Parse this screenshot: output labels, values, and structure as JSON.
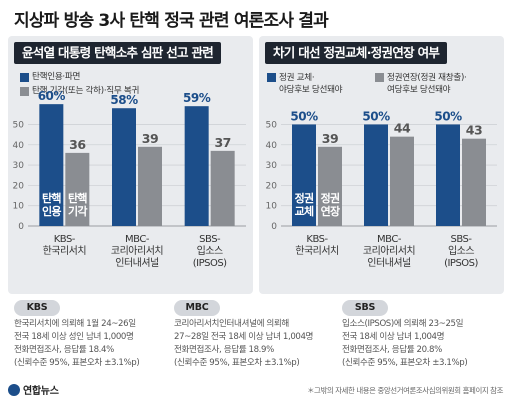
{
  "title": "지상파 방송 3사 탄핵 정국 관련 여론조사 결과",
  "colors": {
    "primary": "#1c4e8a",
    "secondary": "#8a8d92",
    "panel_bg": "#e9ebee",
    "title_bar": "#1e2530"
  },
  "chart_data": [
    {
      "type": "bar",
      "title": "윤석열 대통령 탄핵소추 심판 선고 관련",
      "categories": [
        "KBS-\n한국리서치",
        "MBC-\n코리아리서치\n인터내셔널",
        "SBS-\n입소스\n(IPSOS)"
      ],
      "series": [
        {
          "name": "탄핵인용·파면",
          "values": [
            60,
            58,
            59
          ],
          "labels": [
            "60%",
            "58%",
            "59%"
          ],
          "color": "#1c4e8a"
        },
        {
          "name": "탄핵 기각(또는 각하)·직무 복귀",
          "values": [
            36,
            39,
            37
          ],
          "labels": [
            "36",
            "39",
            "37"
          ],
          "color": "#8a8d92"
        }
      ],
      "yticks": [
        0,
        10,
        20,
        30,
        40,
        50
      ],
      "ylim": [
        0,
        65
      ],
      "grid": true,
      "legend": "top",
      "bar_inner_labels": [
        "탄핵\n인용",
        "탄핵\n기각"
      ]
    },
    {
      "type": "bar",
      "title": "차기 대선 정권교체·정권연장 여부",
      "categories": [
        "KBS-\n한국리서치",
        "MBC-\n코리아리서치\n인터내셔널",
        "SBS-\n입소스\n(IPSOS)"
      ],
      "series": [
        {
          "name": "정권 교체·\n야당후보 당선돼야",
          "values": [
            50,
            50,
            50
          ],
          "labels": [
            "50%",
            "50%",
            "50%"
          ],
          "color": "#1c4e8a"
        },
        {
          "name": "정권연장(정권 재창출)·\n여당후보 당선돼야",
          "values": [
            39,
            44,
            43
          ],
          "labels": [
            "39",
            "44",
            "43"
          ],
          "color": "#8a8d92"
        }
      ],
      "yticks": [
        0,
        10,
        20,
        30,
        40,
        50
      ],
      "ylim": [
        0,
        65
      ],
      "grid": true,
      "legend": "top",
      "bar_inner_labels": [
        "정권\n교체",
        "정권\n연장"
      ]
    }
  ],
  "surveys": [
    {
      "badge": "KBS",
      "lines": [
        "한국리서치에 의뢰해 1월 24~26일",
        "전국 18세 이상 성인 남녀 1,000명",
        "전화면접조사, 응답률 18.4%",
        "(신뢰수준 95%, 표본오차 ±3.1%p)"
      ]
    },
    {
      "badge": "MBC",
      "lines": [
        "코리아리서치인터내셔널에 의뢰해",
        "27~28일 전국 18세 이상 남녀 1,004명",
        "전화면접조사, 응답률 18.9%",
        "(신뢰수준 95%, 표본오차 ±3.1%p)"
      ]
    },
    {
      "badge": "SBS",
      "lines": [
        "입소스(IPSOS)에 의뢰해 23~25일",
        "전국 18세 이상 남녀 1,004명",
        "전화면접조사, 응답률 20.8%",
        "(신뢰수준 95%, 표본오차 ±3.1%p)"
      ]
    }
  ],
  "footer": {
    "logo": "연합뉴스",
    "note": "＊그밖의 자세한 내용은 중앙선거여론조사심의위원회 홈페이지 참조"
  }
}
